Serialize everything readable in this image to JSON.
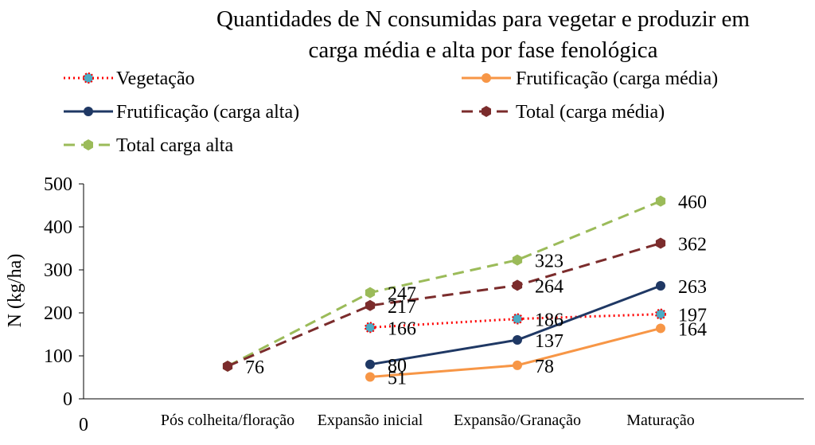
{
  "chart_data": {
    "type": "line",
    "title": [
      "Quantidades de N consumidas para vegetar e produzir em",
      "carga média e alta por fase fenológica"
    ],
    "xlabel": "",
    "ylabel": "N (kg/ha)",
    "ylim": [
      0,
      500
    ],
    "yticks": [
      "0",
      "100",
      "200",
      "300",
      "400",
      "500"
    ],
    "x_origin_label": "0",
    "categories": [
      "Pós colheita/floração",
      "Expansão inicial",
      "Expansão/Granação",
      "Maturação"
    ],
    "legend_position": "top",
    "grid": false,
    "series": [
      {
        "name": "Vegetação",
        "values": [
          null,
          166,
          186,
          197
        ],
        "color": "#ff0000",
        "line": "dotted",
        "marker": "circle",
        "marker_color": "#4bacc6",
        "labels": [
          "",
          "166",
          "186",
          "197"
        ]
      },
      {
        "name": "Frutificação (carga média)",
        "values": [
          null,
          51,
          78,
          164
        ],
        "color": "#f79646",
        "line": "solid",
        "marker": "circle",
        "marker_color": "#f79646",
        "labels": [
          "",
          "51",
          "78",
          "164"
        ]
      },
      {
        "name": "Frutificação (carga alta)",
        "values": [
          null,
          80,
          137,
          263
        ],
        "color": "#1f3864",
        "line": "solid",
        "marker": "circle",
        "marker_color": "#1f3864",
        "labels": [
          "",
          "80",
          "137",
          "263"
        ]
      },
      {
        "name": "Total (carga média)",
        "values": [
          76,
          217,
          264,
          362
        ],
        "color": "#7b2c2c",
        "line": "dashed",
        "marker": "hexagon",
        "marker_color": "#7b2c2c",
        "labels": [
          "76",
          "217",
          "264",
          "362"
        ]
      },
      {
        "name": "Total carga alta",
        "values": [
          76,
          247,
          323,
          460
        ],
        "color": "#9bbb59",
        "line": "dashed",
        "marker": "hexagon",
        "marker_color": "#9bbb59",
        "labels": [
          "",
          "247",
          "323",
          "460"
        ]
      }
    ]
  }
}
